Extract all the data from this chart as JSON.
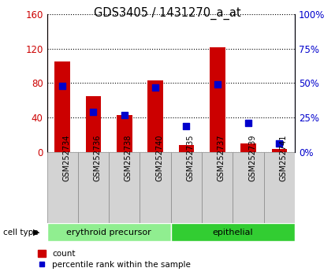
{
  "title": "GDS3405 / 1431270_a_at",
  "samples": [
    "GSM252734",
    "GSM252736",
    "GSM252738",
    "GSM252740",
    "GSM252735",
    "GSM252737",
    "GSM252739",
    "GSM252741"
  ],
  "counts": [
    105,
    65,
    43,
    83,
    8,
    121,
    10,
    4
  ],
  "percentiles": [
    48,
    29,
    27,
    47,
    19,
    49,
    21,
    6
  ],
  "cell_types": [
    {
      "label": "erythroid precursor",
      "start": 0,
      "end": 4,
      "color": "#90EE90"
    },
    {
      "label": "epithelial",
      "start": 4,
      "end": 8,
      "color": "#32CD32"
    }
  ],
  "left_ylim": [
    0,
    160
  ],
  "right_ylim": [
    0,
    100
  ],
  "left_yticks": [
    0,
    40,
    80,
    120,
    160
  ],
  "right_yticks": [
    0,
    25,
    50,
    75,
    100
  ],
  "right_yticklabels": [
    "0%",
    "25%",
    "50%",
    "75%",
    "100%"
  ],
  "left_color": "#cc0000",
  "right_color": "#0000cc",
  "bar_color": "#cc0000",
  "square_color": "#0000cc",
  "bar_width": 0.5,
  "square_size": 40,
  "legend_count_label": "count",
  "legend_pct_label": "percentile rank within the sample",
  "cell_type_label": "cell type",
  "xtick_box_color": "#d3d3d3",
  "xtick_box_edge": "#888888"
}
